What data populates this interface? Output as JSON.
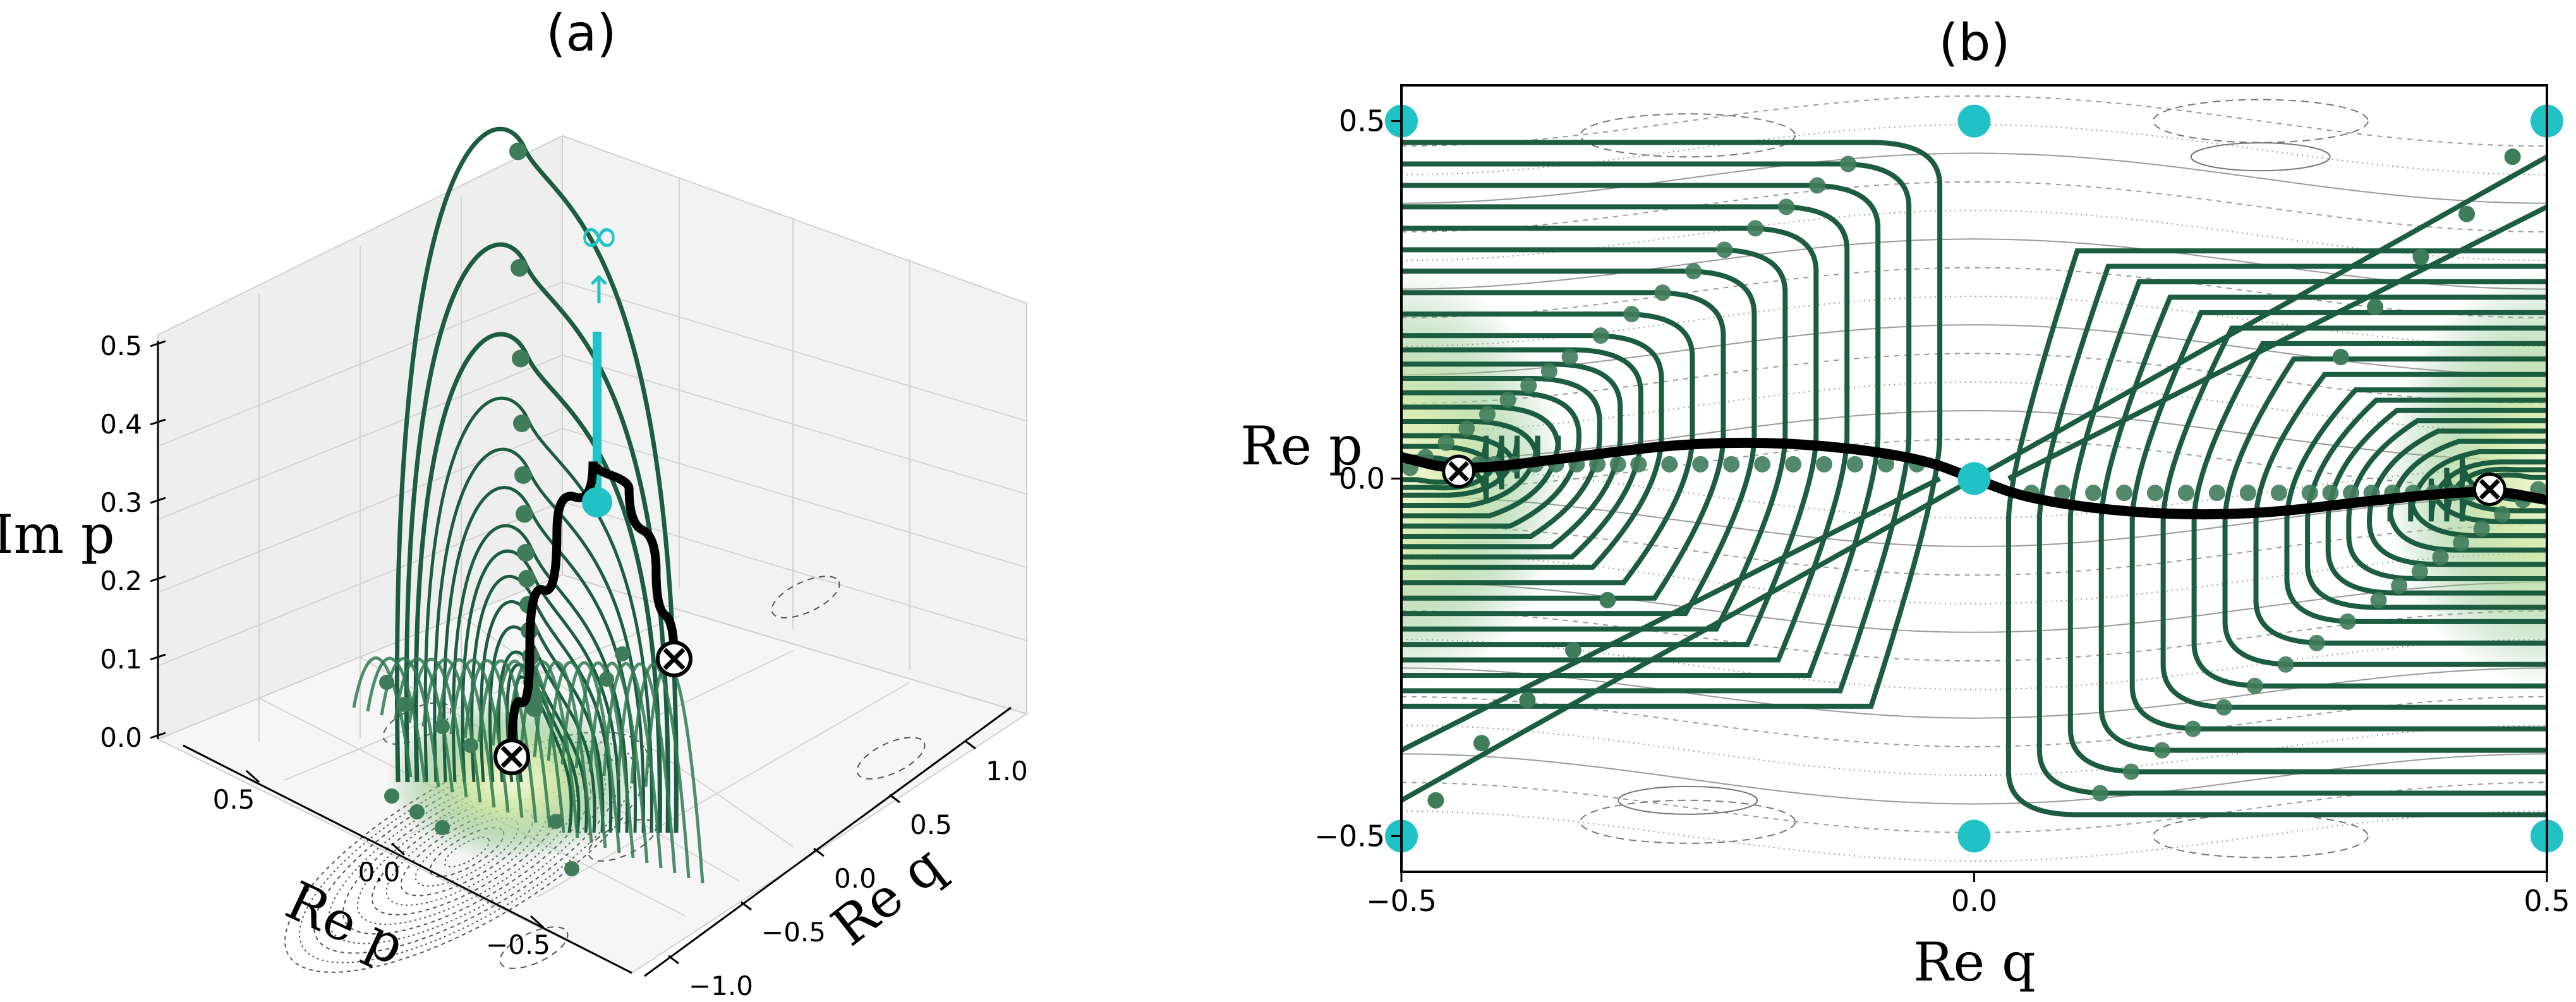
{
  "chart_data": [
    {
      "panel": "a",
      "type": "line",
      "title": "(a)",
      "projection": "3d",
      "xlabel": "Re q",
      "ylabel": "Re p",
      "zlabel": "Im p",
      "x_ticks": [
        "−1.0",
        "−0.5",
        "0.0",
        "0.5",
        "1.0"
      ],
      "y_ticks": [
        "−0.5",
        "0.0",
        "0.5"
      ],
      "z_ticks": [
        "0.0",
        "0.1",
        "0.2",
        "0.3",
        "0.4",
        "0.5"
      ],
      "zlim": [
        0,
        0.5
      ],
      "grid": true,
      "annotation": {
        "symbol": "∞",
        "arrow": "↑"
      },
      "crosses": [
        {
          "x": -0.45,
          "y": 0.01,
          "z": 0.0
        },
        {
          "x": 0.45,
          "y": -0.01,
          "z": 0.0
        }
      ],
      "cyan_point": {
        "x": 0.0,
        "y": 0.0,
        "z": 0.3
      },
      "cyan_line_top_z": 0.48,
      "arch_heights": [
        0.47,
        0.38,
        0.31,
        0.26,
        0.22,
        0.19,
        0.16,
        0.14,
        0.12,
        0.1,
        0.08,
        0.06,
        0.05,
        0.04
      ],
      "black_curve": [
        {
          "x": -0.45,
          "y": 0.01,
          "z": 0.0
        },
        {
          "x": -0.35,
          "y": 0.02,
          "z": 0.12
        },
        {
          "x": -0.2,
          "y": 0.03,
          "z": 0.24
        },
        {
          "x": 0.0,
          "y": 0.0,
          "z": 0.3
        },
        {
          "x": 0.2,
          "y": -0.03,
          "z": 0.24
        },
        {
          "x": 0.35,
          "y": -0.02,
          "z": 0.12
        },
        {
          "x": 0.45,
          "y": -0.01,
          "z": 0.0
        }
      ]
    },
    {
      "panel": "b",
      "type": "line",
      "title": "(b)",
      "xlabel": "Re q",
      "ylabel": "Re p",
      "xlim": [
        -0.5,
        0.5
      ],
      "ylim": [
        -0.55,
        0.55
      ],
      "x_ticks": [
        -0.5,
        0.0,
        0.5
      ],
      "x_tick_labels": [
        "−0.5",
        "0.0",
        "0.5"
      ],
      "y_ticks": [
        -0.5,
        0.0,
        0.5
      ],
      "y_tick_labels": [
        "−0.5",
        "0.0",
        "0.5"
      ],
      "crosses": [
        {
          "x": -0.45,
          "y": 0.01
        },
        {
          "x": 0.45,
          "y": -0.015
        }
      ],
      "cyan_points": [
        {
          "x": -0.5,
          "y": 0.5
        },
        {
          "x": 0.0,
          "y": 0.5
        },
        {
          "x": 0.5,
          "y": 0.5
        },
        {
          "x": 0.0,
          "y": 0.0
        },
        {
          "x": -0.5,
          "y": -0.5
        },
        {
          "x": 0.0,
          "y": -0.5
        },
        {
          "x": 0.5,
          "y": -0.5
        }
      ],
      "black_curve": [
        {
          "x": -0.5,
          "y": 0.03
        },
        {
          "x": -0.45,
          "y": 0.01
        },
        {
          "x": -0.35,
          "y": 0.03
        },
        {
          "x": -0.25,
          "y": 0.05
        },
        {
          "x": -0.15,
          "y": 0.05
        },
        {
          "x": -0.05,
          "y": 0.03
        },
        {
          "x": 0.0,
          "y": 0.0
        },
        {
          "x": 0.05,
          "y": -0.03
        },
        {
          "x": 0.15,
          "y": -0.05
        },
        {
          "x": 0.25,
          "y": -0.05
        },
        {
          "x": 0.35,
          "y": -0.03
        },
        {
          "x": 0.45,
          "y": -0.015
        },
        {
          "x": 0.5,
          "y": -0.03
        }
      ],
      "loop_levels": [
        0.47,
        0.44,
        0.41,
        0.38,
        0.35,
        0.32,
        0.29,
        0.26,
        0.23,
        0.2,
        0.18,
        0.16,
        0.14,
        0.12,
        0.1,
        0.08,
        0.06,
        0.045,
        0.03
      ],
      "diagonals": [
        {
          "x1": -0.5,
          "y1": -0.45,
          "x2": 0.0,
          "y2": 0.0
        },
        {
          "x1": -0.5,
          "y1": -0.38,
          "x2": -0.03,
          "y2": 0.0
        },
        {
          "x1": 0.0,
          "y1": 0.0,
          "x2": 0.5,
          "y2": 0.45
        },
        {
          "x1": 0.03,
          "y1": 0.0,
          "x2": 0.5,
          "y2": 0.38
        }
      ],
      "colors": {
        "flow": "#1c5c40",
        "point": "#3f7c5a",
        "cyan": "#20c2c6",
        "contour": "#8a8a8a",
        "glow_inner": "#f4f8d8",
        "glow_outer": "#5fa867"
      }
    }
  ]
}
